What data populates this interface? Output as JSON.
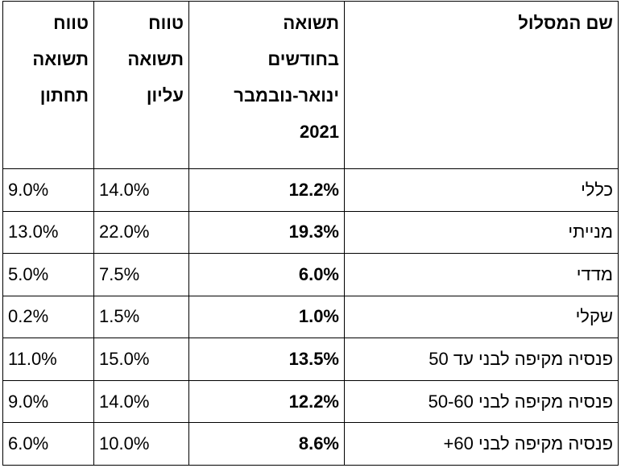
{
  "table": {
    "headers": {
      "name": "שם המסלול",
      "return": [
        "תשואה",
        "בחודשים",
        "ינואר-נובמבר",
        "2021"
      ],
      "upper": [
        "טווח",
        "תשואה",
        "עליון"
      ],
      "lower": [
        "טווח",
        "תשואה",
        "תחתון"
      ]
    },
    "rows": [
      {
        "name": "כללי",
        "return": "12.2%",
        "upper": "14.0%",
        "lower": "9.0%"
      },
      {
        "name": "מנייתי",
        "return": "19.3%",
        "upper": "22.0%",
        "lower": "13.0%"
      },
      {
        "name": "מדדי",
        "return": "6.0%",
        "upper": "7.5%",
        "lower": "5.0%"
      },
      {
        "name": "שקלי",
        "return": "1.0%",
        "upper": "1.5%",
        "lower": "0.2%"
      },
      {
        "name": "פנסיה מקיפה לבני עד 50",
        "return": "13.5%",
        "upper": "15.0%",
        "lower": "11.0%"
      },
      {
        "name": "פנסיה מקיפה לבני 50-60",
        "return": "12.2%",
        "upper": "14.0%",
        "lower": "9.0%"
      },
      {
        "name": "פנסיה מקיפה לבני 60+",
        "return": "8.6%",
        "upper": "10.0%",
        "lower": "6.0%"
      }
    ]
  }
}
